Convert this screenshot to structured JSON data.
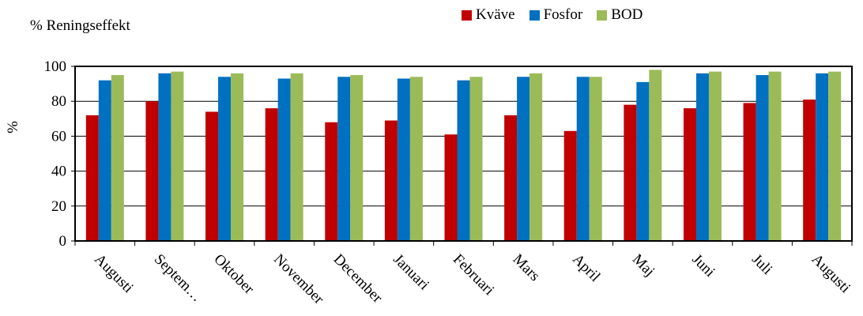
{
  "chart_data": {
    "type": "bar",
    "title": "% Reningseffekt",
    "xlabel": "",
    "ylabel": "%",
    "ylim": [
      0,
      100
    ],
    "yticks": [
      0,
      20,
      40,
      60,
      80,
      100
    ],
    "grid": true,
    "legend_position": "top-right",
    "categories": [
      "Augusti",
      "Septem…",
      "Oktober",
      "November",
      "December",
      "Januari",
      "Februari",
      "Mars",
      "April",
      "Maj",
      "Juni",
      "Juli",
      "Augusti"
    ],
    "series": [
      {
        "name": "Kväve",
        "color": "#c00000",
        "values": [
          72,
          80,
          74,
          76,
          68,
          69,
          61,
          72,
          63,
          78,
          76,
          79,
          81
        ]
      },
      {
        "name": "Fosfor",
        "color": "#0070c0",
        "values": [
          92,
          96,
          94,
          93,
          94,
          93,
          92,
          94,
          94,
          91,
          96,
          95,
          96
        ]
      },
      {
        "name": "BOD",
        "color": "#9bbb59",
        "values": [
          95,
          97,
          96,
          96,
          95,
          94,
          94,
          96,
          94,
          98,
          97,
          97,
          97
        ]
      }
    ]
  }
}
